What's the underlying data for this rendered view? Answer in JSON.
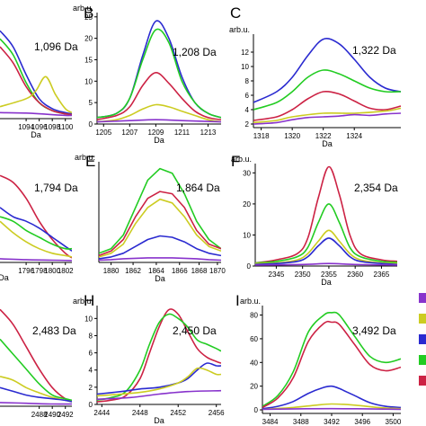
{
  "chart_data": [
    {
      "type": "line",
      "panel": "",
      "mass": "1,096 Da",
      "xlabel": "Da",
      "yunit": "",
      "xlim": [
        1090,
        1101
      ],
      "ylim": [
        0,
        27
      ],
      "xticks": [
        1094,
        1096,
        1098,
        1100
      ],
      "yticks": [],
      "series": [
        {
          "color": "#2a2ad0",
          "x": [
            1090,
            1092,
            1094,
            1096,
            1098,
            1100,
            1101
          ],
          "y": [
            22,
            18,
            11,
            5,
            2.5,
            1.5,
            1.2
          ]
        },
        {
          "color": "#22cc22",
          "x": [
            1090,
            1092,
            1094,
            1096,
            1098,
            1100,
            1101
          ],
          "y": [
            20,
            16,
            9,
            4,
            2,
            1.2,
            1
          ]
        },
        {
          "color": "#cc2244",
          "x": [
            1090,
            1092,
            1094,
            1096,
            1098,
            1100,
            1101
          ],
          "y": [
            18,
            14,
            8,
            4,
            2,
            1.2,
            1
          ]
        },
        {
          "color": "#cccc22",
          "x": [
            1090,
            1094,
            1095.5,
            1097,
            1098.5,
            1100,
            1101
          ],
          "y": [
            3,
            5,
            7,
            10.5,
            6,
            2.5,
            1.5
          ]
        },
        {
          "color": "#8833cc",
          "x": [
            1090,
            1094,
            1097,
            1100,
            1101
          ],
          "y": [
            1.5,
            1.4,
            1.1,
            0.8,
            0.8
          ]
        }
      ]
    },
    {
      "type": "line",
      "panel": "B",
      "mass": "1,208 Da",
      "xlabel": "Da",
      "yunit": "arb.u.",
      "xlim": [
        1204.5,
        1214
      ],
      "ylim": [
        0,
        26
      ],
      "xticks": [
        1205,
        1207,
        1209,
        1211,
        1213
      ],
      "yticks": [
        0,
        5,
        10,
        15,
        20,
        25
      ],
      "series": [
        {
          "color": "#2a2ad0",
          "x": [
            1204.5,
            1206,
            1207,
            1208,
            1209,
            1210,
            1211,
            1212,
            1213,
            1214
          ],
          "y": [
            1.5,
            2.5,
            6,
            16,
            24,
            20,
            11,
            5,
            2.5,
            1.5
          ]
        },
        {
          "color": "#22cc22",
          "x": [
            1204.5,
            1206,
            1207,
            1208,
            1209,
            1210,
            1211,
            1212,
            1213,
            1214
          ],
          "y": [
            1.5,
            2.5,
            6,
            15,
            22,
            19,
            10,
            5,
            2.5,
            1.5
          ]
        },
        {
          "color": "#cc2244",
          "x": [
            1204.5,
            1206,
            1207,
            1208,
            1209,
            1210,
            1211,
            1212,
            1213,
            1214
          ],
          "y": [
            1,
            2,
            4,
            9,
            12,
            9.5,
            6,
            3,
            1.5,
            1
          ]
        },
        {
          "color": "#cccc22",
          "x": [
            1204.5,
            1206,
            1207,
            1208,
            1209,
            1210,
            1211,
            1212,
            1213,
            1214
          ],
          "y": [
            0.5,
            1,
            2,
            3.5,
            4.5,
            4,
            3,
            2,
            1,
            0.5
          ]
        },
        {
          "color": "#8833cc",
          "x": [
            1204.5,
            1207,
            1209,
            1211,
            1214
          ],
          "y": [
            0.5,
            0.8,
            1,
            0.8,
            0.5
          ]
        }
      ]
    },
    {
      "type": "line",
      "panel": "C",
      "mass": "1,322 Da",
      "xlabel": "Da",
      "yunit": "arb.u.",
      "xlim": [
        1317.5,
        1327
      ],
      "ylim": [
        1.5,
        14.5
      ],
      "xticks": [
        1318,
        1320,
        1322,
        1324
      ],
      "yticks": [
        2,
        4,
        6,
        8,
        10,
        12
      ],
      "series": [
        {
          "color": "#2a2ad0",
          "x": [
            1317.5,
            1319,
            1320,
            1321,
            1322,
            1323,
            1324,
            1325,
            1326,
            1327
          ],
          "y": [
            5,
            6.5,
            8.5,
            11.5,
            13.8,
            13.2,
            11,
            8.5,
            7,
            6.5
          ]
        },
        {
          "color": "#22cc22",
          "x": [
            1317.5,
            1319,
            1320,
            1321,
            1322,
            1323,
            1324,
            1325,
            1326,
            1327
          ],
          "y": [
            4,
            5,
            6.5,
            8.5,
            9.5,
            9,
            8,
            7,
            6.5,
            6.5
          ]
        },
        {
          "color": "#cc2244",
          "x": [
            1317.5,
            1319,
            1320,
            1321,
            1322,
            1323,
            1324,
            1325,
            1326,
            1327
          ],
          "y": [
            2.5,
            3,
            4,
            5.5,
            6.5,
            6.2,
            5.2,
            4.2,
            4,
            4.5
          ]
        },
        {
          "color": "#cccc22",
          "x": [
            1317.5,
            1319,
            1320,
            1322,
            1324,
            1326,
            1327
          ],
          "y": [
            2.2,
            2.5,
            3,
            3.5,
            3.5,
            3.8,
            4.2
          ]
        },
        {
          "color": "#8833cc",
          "x": [
            1317.5,
            1319,
            1320,
            1321,
            1322,
            1323,
            1324,
            1325,
            1326,
            1327
          ],
          "y": [
            2,
            2.2,
            2.6,
            2.9,
            3,
            3.1,
            3.3,
            3.2,
            3.4,
            3.5
          ]
        }
      ]
    },
    {
      "type": "line",
      "panel": "",
      "mass": "1,794 Da",
      "xlabel": "Da",
      "yunit": "",
      "xlim": [
        1792,
        1803
      ],
      "ylim": [
        0,
        22
      ],
      "xticks": [
        1796,
        1798,
        1800,
        1802
      ],
      "yticks": [],
      "series": [
        {
          "color": "#cc2244",
          "x": [
            1792,
            1794,
            1796,
            1798,
            1800,
            1802,
            1803
          ],
          "y": [
            19,
            17.5,
            14,
            9,
            5,
            2,
            1
          ]
        },
        {
          "color": "#2a2ad0",
          "x": [
            1792,
            1794,
            1796,
            1798,
            1800,
            1802,
            1803
          ],
          "y": [
            12,
            10,
            9,
            7.5,
            5.5,
            3.5,
            2.5
          ]
        },
        {
          "color": "#22cc22",
          "x": [
            1792,
            1794,
            1796,
            1798,
            1800,
            1802,
            1803
          ],
          "y": [
            10,
            9,
            7,
            5.5,
            4,
            3,
            3
          ]
        },
        {
          "color": "#cccc22",
          "x": [
            1792,
            1794,
            1796,
            1798,
            1800,
            1802,
            1803
          ],
          "y": [
            9,
            6.5,
            4.5,
            3,
            2,
            1.5,
            1.2
          ]
        },
        {
          "color": "#8833cc",
          "x": [
            1792,
            1796,
            1800,
            1803
          ],
          "y": [
            0.8,
            0.6,
            0.5,
            0.4
          ]
        }
      ]
    },
    {
      "type": "line",
      "panel": "E",
      "mass": "1,864 Da",
      "xlabel": "Da",
      "yunit": "arb.u.",
      "xlim": [
        1879,
        1870.5
      ],
      "ylim": [
        0,
        22
      ],
      "xticks": [
        1880,
        1862,
        1864,
        1866,
        1868,
        1870
      ],
      "yticks": [],
      "series": []
    },
    {
      "type": "line",
      "panel": "F",
      "mass": "2,354 Da",
      "xlabel": "Da",
      "yunit": "arb.u.",
      "xlim": [
        2341,
        2368
      ],
      "ylim": [
        0,
        33
      ],
      "xticks": [
        2345,
        2350,
        2355,
        2360,
        2365
      ],
      "yticks": [
        0,
        10,
        20,
        30
      ],
      "series": [
        {
          "color": "#cc2244",
          "x": [
            2341,
            2345,
            2349,
            2351,
            2353,
            2355,
            2357,
            2359,
            2361,
            2365,
            2368
          ],
          "y": [
            1,
            2,
            4,
            9,
            22,
            32,
            23,
            10,
            4,
            2,
            1.5
          ]
        },
        {
          "color": "#22cc22",
          "x": [
            2341,
            2345,
            2349,
            2351,
            2353,
            2355,
            2357,
            2359,
            2361,
            2365,
            2368
          ],
          "y": [
            1,
            1.5,
            3,
            6,
            14,
            20,
            14,
            6,
            3,
            1.5,
            1.2
          ]
        },
        {
          "color": "#cccc22",
          "x": [
            2341,
            2345,
            2349,
            2351,
            2353,
            2355,
            2357,
            2359,
            2361,
            2365,
            2368
          ],
          "y": [
            0.8,
            1,
            2,
            4,
            8,
            11.5,
            8,
            4,
            2,
            1,
            0.8
          ]
        },
        {
          "color": "#2a2ad0",
          "x": [
            2341,
            2345,
            2349,
            2351,
            2353,
            2355,
            2357,
            2359,
            2361,
            2365,
            2368
          ],
          "y": [
            0.5,
            0.8,
            1.5,
            3,
            6.5,
            9,
            6.5,
            3,
            1.5,
            0.8,
            0.5
          ]
        },
        {
          "color": "#8833cc",
          "x": [
            2341,
            2350,
            2355,
            2360,
            2368
          ],
          "y": [
            0.3,
            0.5,
            0.8,
            0.5,
            0.3
          ]
        }
      ]
    },
    {
      "type": "line",
      "panel": "",
      "mass": "2,483 Da",
      "xlabel": "",
      "yunit": "",
      "xlim": [
        2482,
        2493
      ],
      "ylim": [
        0,
        14
      ],
      "xticks": [
        2488,
        2490,
        2492
      ],
      "yticks": [],
      "series": [
        {
          "color": "#cc2244",
          "x": [
            2482,
            2484,
            2486,
            2488,
            2490,
            2492,
            2493
          ],
          "y": [
            13,
            11,
            8,
            5,
            2.5,
            1,
            0.8
          ]
        },
        {
          "color": "#22cc22",
          "x": [
            2482,
            2484,
            2486,
            2488,
            2490,
            2492,
            2493
          ],
          "y": [
            9,
            7,
            5,
            3,
            1.5,
            1,
            0.8
          ]
        },
        {
          "color": "#cccc22",
          "x": [
            2482,
            2484,
            2486,
            2488,
            2490,
            2492,
            2493
          ],
          "y": [
            4,
            3.5,
            2.5,
            1.8,
            1.2,
            0.8,
            0.6
          ]
        },
        {
          "color": "#2a2ad0",
          "x": [
            2482,
            2484,
            2486,
            2488,
            2490,
            2492,
            2493
          ],
          "y": [
            2.5,
            2,
            1.5,
            1.2,
            1,
            0.8,
            0.6
          ]
        },
        {
          "color": "#8833cc",
          "x": [
            2482,
            2486,
            2490,
            2493
          ],
          "y": [
            0.5,
            0.4,
            0.3,
            0.3
          ]
        }
      ]
    },
    {
      "type": "line",
      "panel": "H",
      "mass": "2,450 Da",
      "xlabel": "Da",
      "yunit": "arb.u.",
      "xlim": [
        2443.5,
        2456.5
      ],
      "ylim": [
        0,
        11.5
      ],
      "xticks": [
        2444,
        2448,
        2452,
        2456
      ],
      "yticks": [
        0,
        2,
        4,
        6,
        8,
        10
      ],
      "series": [
        {
          "color": "#cc2244",
          "x": [
            2443.5,
            2445,
            2446.5,
            2448,
            2449,
            2450,
            2451,
            2452,
            2453,
            2454,
            2455,
            2456,
            2456.5
          ],
          "y": [
            0.3,
            0.5,
            1,
            3,
            6,
            9,
            11,
            10.5,
            8.5,
            6.5,
            5.5,
            5,
            4.8
          ]
        },
        {
          "color": "#22cc22",
          "x": [
            2443.5,
            2445,
            2446.5,
            2448,
            2449,
            2450,
            2451,
            2452,
            2453,
            2454,
            2455,
            2456,
            2456.5
          ],
          "y": [
            0.5,
            0.8,
            1.5,
            4,
            7,
            9.5,
            10.5,
            10,
            9,
            7.5,
            7,
            6.5,
            6.2
          ]
        },
        {
          "color": "#2a2ad0",
          "x": [
            2443.5,
            2446,
            2448,
            2450,
            2452,
            2453,
            2454,
            2455,
            2456,
            2456.5
          ],
          "y": [
            1.2,
            1.5,
            1.8,
            2,
            2.5,
            3,
            4,
            4.8,
            4.5,
            4.5
          ]
        },
        {
          "color": "#cccc22",
          "x": [
            2443.5,
            2446,
            2448,
            2450,
            2452,
            2453,
            2454,
            2455,
            2456,
            2456.5
          ],
          "y": [
            1,
            1.2,
            1.4,
            1.8,
            2.5,
            3.2,
            4.2,
            4,
            3.5,
            3.5
          ]
        },
        {
          "color": "#8833cc",
          "x": [
            2443.5,
            2447,
            2450,
            2453,
            2456.5
          ],
          "y": [
            0.6,
            0.8,
            1.2,
            1.5,
            1.6
          ]
        }
      ]
    },
    {
      "type": "line",
      "panel": "I",
      "mass": "3,492 Da",
      "xlabel": "Da",
      "yunit": "arb.u.",
      "xlim": [
        3483,
        3501
      ],
      "ylim": [
        -3,
        88
      ],
      "xticks": [
        3484,
        3488,
        3492,
        3496,
        3500
      ],
      "yticks": [
        0,
        20,
        40,
        60,
        80
      ],
      "series": [
        {
          "color": "#22cc22",
          "x": [
            3483,
            3485,
            3487,
            3489,
            3491,
            3492,
            3493,
            3495,
            3497,
            3499,
            3501
          ],
          "y": [
            3,
            12,
            32,
            66,
            80,
            82,
            80,
            62,
            45,
            40,
            43
          ]
        },
        {
          "color": "#cc2244",
          "x": [
            3483,
            3485,
            3487,
            3489,
            3491,
            3492,
            3493,
            3495,
            3497,
            3499,
            3501
          ],
          "y": [
            2,
            10,
            27,
            58,
            73,
            74,
            72,
            55,
            38,
            33,
            36
          ]
        },
        {
          "color": "#2a2ad0",
          "x": [
            3483,
            3485,
            3487,
            3489,
            3491,
            3492,
            3493,
            3495,
            3497,
            3499,
            3501
          ],
          "y": [
            1,
            3,
            7,
            14,
            19,
            20,
            18,
            12,
            6,
            3,
            2
          ]
        },
        {
          "color": "#cccc22",
          "x": [
            3483,
            3487,
            3490,
            3492,
            3495,
            3498,
            3501
          ],
          "y": [
            0.5,
            2,
            4,
            5,
            4,
            2,
            1
          ]
        },
        {
          "color": "#8833cc",
          "x": [
            3483,
            3492,
            3501
          ],
          "y": [
            0.5,
            1,
            0.5
          ]
        }
      ]
    }
  ],
  "legend_colors": [
    "#8833cc",
    "#cccc22",
    "#2a2ad0",
    "#22cc22",
    "#cc2244"
  ]
}
